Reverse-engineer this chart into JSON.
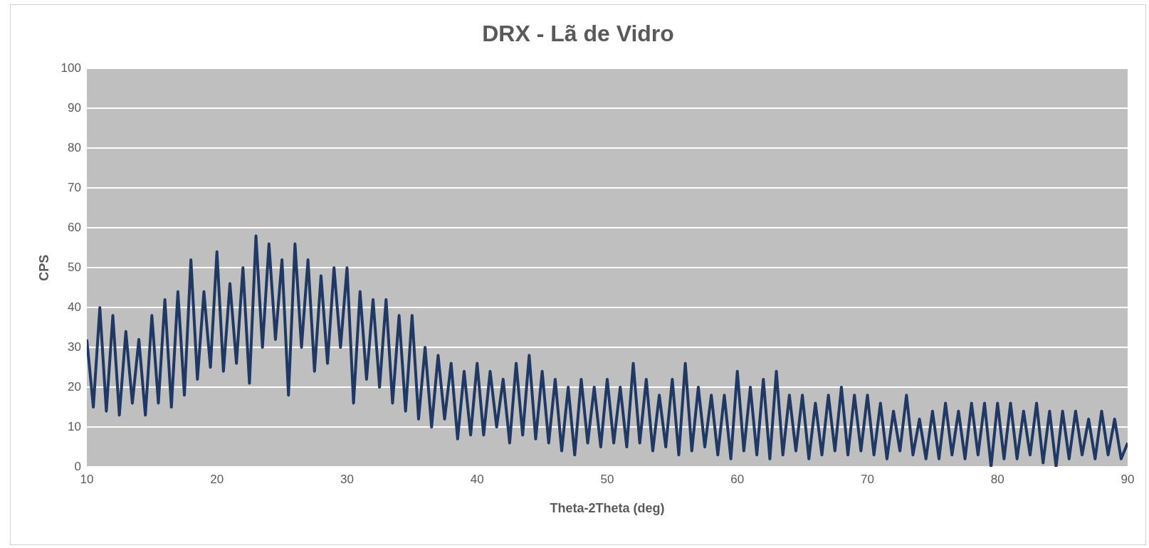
{
  "chart_data": {
    "type": "line",
    "title": "DRX - Lã de Vidro",
    "xlabel": "Theta-2Theta (deg)",
    "ylabel": "CPS",
    "x": [
      10,
      10.5,
      11,
      11.5,
      12,
      12.5,
      13,
      13.5,
      14,
      14.5,
      15,
      15.5,
      16,
      16.5,
      17,
      17.5,
      18,
      18.5,
      19,
      19.5,
      20,
      20.5,
      21,
      21.5,
      22,
      22.5,
      23,
      23.5,
      24,
      24.5,
      25,
      25.5,
      26,
      26.5,
      27,
      27.5,
      28,
      28.5,
      29,
      29.5,
      30,
      30.5,
      31,
      31.5,
      32,
      32.5,
      33,
      33.5,
      34,
      34.5,
      35,
      35.5,
      36,
      36.5,
      37,
      37.5,
      38,
      38.5,
      39,
      39.5,
      40,
      40.5,
      41,
      41.5,
      42,
      42.5,
      43,
      43.5,
      44,
      44.5,
      45,
      45.5,
      46,
      46.5,
      47,
      47.5,
      48,
      48.5,
      49,
      49.5,
      50,
      50.5,
      51,
      51.5,
      52,
      52.5,
      53,
      53.5,
      54,
      54.5,
      55,
      55.5,
      56,
      56.5,
      57,
      57.5,
      58,
      58.5,
      59,
      59.5,
      60,
      60.5,
      61,
      61.5,
      62,
      62.5,
      63,
      63.5,
      64,
      64.5,
      65,
      65.5,
      66,
      66.5,
      67,
      67.5,
      68,
      68.5,
      69,
      69.5,
      70,
      70.5,
      71,
      71.5,
      72,
      72.5,
      73,
      73.5,
      74,
      74.5,
      75,
      75.5,
      76,
      76.5,
      77,
      77.5,
      78,
      78.5,
      79,
      79.5,
      80,
      80.5,
      81,
      81.5,
      82,
      82.5,
      83,
      83.5,
      84,
      84.5,
      85,
      85.5,
      86,
      86.5,
      87,
      87.5,
      88,
      88.5,
      89,
      89.5,
      90
    ],
    "series": [
      {
        "color": "#1f3864",
        "values": [
          32,
          15,
          40,
          14,
          38,
          13,
          34,
          16,
          32,
          13,
          38,
          16,
          42,
          15,
          44,
          18,
          52,
          22,
          44,
          25,
          54,
          24,
          46,
          26,
          50,
          21,
          58,
          30,
          56,
          32,
          52,
          18,
          56,
          30,
          52,
          24,
          48,
          26,
          50,
          30,
          50,
          16,
          44,
          22,
          42,
          20,
          42,
          16,
          38,
          14,
          38,
          12,
          30,
          10,
          28,
          12,
          26,
          7,
          24,
          8,
          26,
          8,
          24,
          10,
          22,
          6,
          26,
          8,
          28,
          7,
          24,
          6,
          22,
          4,
          20,
          3,
          22,
          6,
          20,
          5,
          22,
          6,
          20,
          5,
          26,
          6,
          22,
          4,
          18,
          5,
          22,
          3,
          26,
          4,
          20,
          5,
          18,
          3,
          18,
          2,
          24,
          4,
          20,
          3,
          22,
          2,
          24,
          3,
          18,
          4,
          18,
          2,
          16,
          3,
          18,
          4,
          20,
          3,
          18,
          4,
          18,
          3,
          16,
          2,
          14,
          4,
          18,
          3,
          12,
          2,
          14,
          2,
          16,
          3,
          14,
          2,
          16,
          3,
          16,
          0,
          16,
          2,
          16,
          2,
          14,
          3,
          16,
          1,
          14,
          0,
          14,
          2,
          14,
          3,
          12,
          2,
          14,
          3,
          12,
          2,
          6
        ]
      }
    ],
    "xlim": [
      10,
      90
    ],
    "xticks": [
      10,
      20,
      30,
      40,
      50,
      60,
      70,
      80,
      90
    ],
    "ylim": [
      0,
      100
    ],
    "yticks": [
      0,
      10,
      20,
      30,
      40,
      50,
      60,
      70,
      80,
      90,
      100
    ],
    "grid": "y",
    "legend": false,
    "marker": "none",
    "line_style": "solid"
  }
}
